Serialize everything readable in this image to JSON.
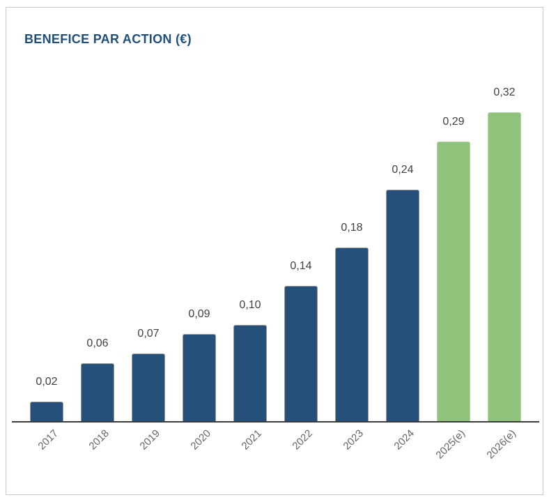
{
  "chart_data": {
    "type": "bar",
    "title": "BENEFICE PAR ACTION (€)",
    "xlabel": "",
    "ylabel": "",
    "categories": [
      "2017",
      "2018",
      "2019",
      "2020",
      "2021",
      "2022",
      "2023",
      "2024",
      "2025(e)",
      "2026(e)"
    ],
    "values": [
      0.02,
      0.06,
      0.07,
      0.09,
      0.1,
      0.14,
      0.18,
      0.24,
      0.29,
      0.32
    ],
    "value_labels": [
      "0,02",
      "0,06",
      "0,07",
      "0,09",
      "0,10",
      "0,14",
      "0,18",
      "0,24",
      "0,29",
      "0,32"
    ],
    "estimated": [
      false,
      false,
      false,
      false,
      false,
      false,
      false,
      false,
      true,
      true
    ],
    "ylim": [
      0,
      0.32
    ],
    "grid": false,
    "legend": "none",
    "tick_rotation": -45,
    "colors": {
      "title": "#1f4f7c",
      "actual_bar": "#24507a",
      "actual_bar_stroke": "#9b9b9b",
      "estimate_bar": "#8fc37c",
      "estimate_bar_stroke": "#b5d6a6",
      "axis_line": "#3c3c3c",
      "value_label": "#404040",
      "tick_label": "#666666",
      "card_border": "#c9c9c9"
    }
  }
}
